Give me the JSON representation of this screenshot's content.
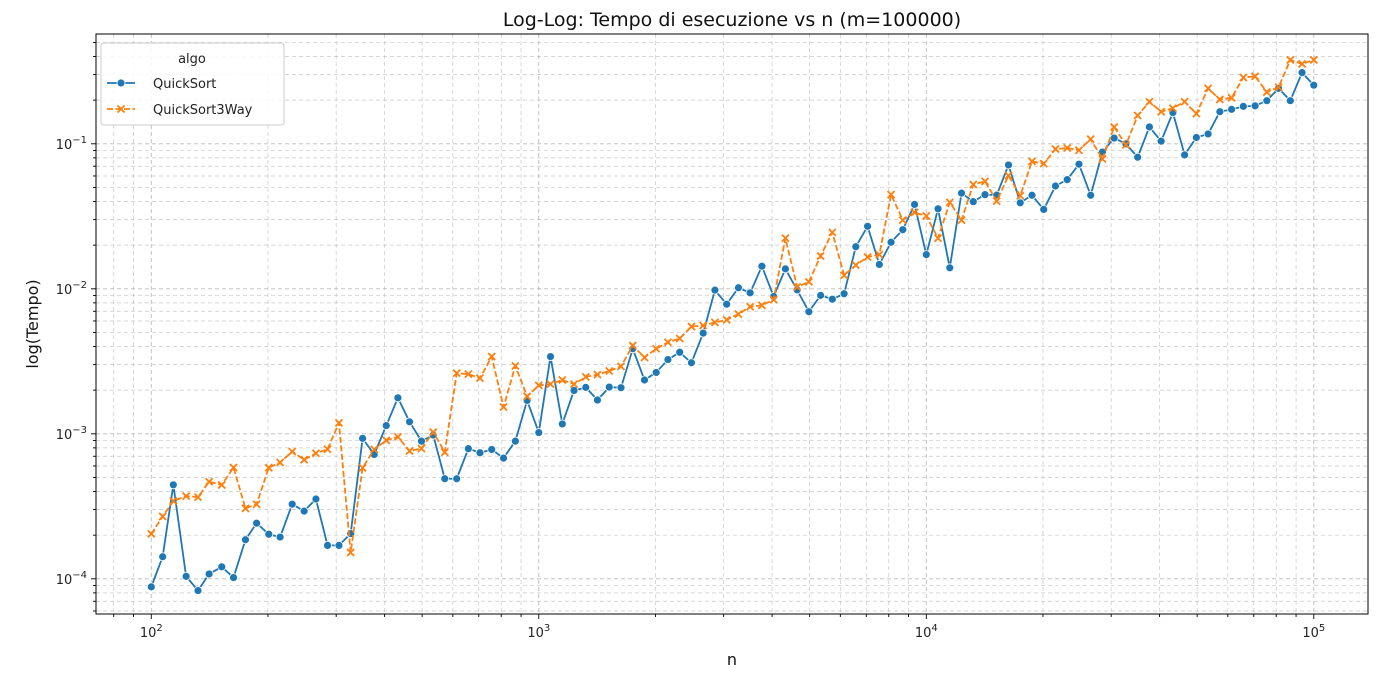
{
  "chart_data": {
    "type": "line",
    "title": "Log-Log: Tempo di esecuzione vs n (m=100000)",
    "xlabel": "n",
    "ylabel": "log(Tempo)",
    "xscale": "log",
    "yscale": "log",
    "xlim": [
      72,
      138000
    ],
    "ylim": [
      5.72e-05,
      0.5717
    ],
    "grid": true,
    "legend": {
      "title": "algo",
      "placement": "top-left"
    },
    "x": [
      100,
      107,
      114,
      123,
      132,
      141,
      152,
      163,
      175,
      187,
      201,
      215,
      231,
      248,
      266,
      285,
      305,
      327,
      351,
      376,
      404,
      433,
      464,
      498,
      534,
      572,
      614,
      658,
      705,
      756,
      811,
      870,
      933,
      1000,
      1072,
      1150,
      1233,
      1322,
      1417,
      1520,
      1630,
      1748,
      1874,
      2009,
      2154,
      2310,
      2477,
      2656,
      2848,
      3054,
      3275,
      3511,
      3765,
      4037,
      4329,
      4642,
      4977,
      5337,
      5722,
      6136,
      6579,
      7055,
      7565,
      8111,
      8697,
      9326,
      10000,
      10723,
      11498,
      12328,
      13219,
      14175,
      15199,
      16298,
      17475,
      18738,
      20092,
      21544,
      23101,
      24771,
      26561,
      28480,
      30539,
      32745,
      35112,
      37649,
      40370,
      43288,
      46416,
      49770,
      53367,
      57224,
      61359,
      65793,
      70548,
      75646,
      81113,
      86975,
      93260,
      100000
    ],
    "series": [
      {
        "name": "QuickSort",
        "color": "#1f77b4",
        "marker": "circle",
        "values": [
          8.8e-05,
          0.000142,
          0.000445,
          0.000104,
          8.3e-05,
          0.000108,
          0.000121,
          0.000102,
          0.000186,
          0.000242,
          0.000203,
          0.000194,
          0.000327,
          0.000293,
          0.000355,
          0.00017,
          0.00017,
          0.000205,
          0.00093,
          0.00072,
          0.00114,
          0.00177,
          0.00121,
          0.00089,
          0.00098,
          0.00049,
          0.00049,
          0.00079,
          0.00074,
          0.00078,
          0.00068,
          0.00089,
          0.0017,
          0.00102,
          0.00341,
          0.00117,
          0.00199,
          0.00209,
          0.00171,
          0.0021,
          0.00208,
          0.00386,
          0.00235,
          0.00265,
          0.00325,
          0.00365,
          0.00309,
          0.00495,
          0.00979,
          0.00783,
          0.01017,
          0.00938,
          0.01432,
          0.00886,
          0.01372,
          0.00983,
          0.00695,
          0.00901,
          0.00848,
          0.00925,
          0.01951,
          0.02698,
          0.01472,
          0.02094,
          0.02555,
          0.03818,
          0.01721,
          0.03562,
          0.01396,
          0.04568,
          0.03991,
          0.04459,
          0.04427,
          0.07147,
          0.03919,
          0.04418,
          0.03528,
          0.05117,
          0.0566,
          0.07233,
          0.04418,
          0.08766,
          0.10956,
          0.09989,
          0.08075,
          0.13062,
          0.10428,
          0.16408,
          0.08383,
          0.1105,
          0.11696,
          0.16645,
          0.17284,
          0.18117,
          0.18267,
          0.19833,
          0.24119,
          0.19833,
          0.30965,
          0.25356
        ]
      },
      {
        "name": "QuickSort3Way",
        "color": "#ff7f0e",
        "marker": "x",
        "values": [
          0.000204,
          0.000269,
          0.000344,
          0.000372,
          0.000366,
          0.000467,
          0.000444,
          0.000586,
          0.000306,
          0.000327,
          0.000584,
          0.000634,
          0.000754,
          0.000663,
          0.000734,
          0.000783,
          0.001189,
          0.000152,
          0.000582,
          0.000781,
          0.000901,
          0.000952,
          0.000762,
          0.000792,
          0.001026,
          0.000747,
          0.00262,
          0.00258,
          0.00242,
          0.00341,
          0.00153,
          0.00294,
          0.00181,
          0.00216,
          0.0022,
          0.00235,
          0.0022,
          0.00247,
          0.00256,
          0.00271,
          0.00292,
          0.00406,
          0.00336,
          0.00386,
          0.00428,
          0.00454,
          0.00549,
          0.00558,
          0.00587,
          0.00611,
          0.00669,
          0.00752,
          0.00769,
          0.00842,
          0.02235,
          0.01029,
          0.01117,
          0.01684,
          0.02451,
          0.01241,
          0.01456,
          0.01658,
          0.01722,
          0.04467,
          0.02978,
          0.03362,
          0.03183,
          0.02233,
          0.03948,
          0.02978,
          0.05238,
          0.05508,
          0.04026,
          0.06033,
          0.04382,
          0.07566,
          0.07293,
          0.09197,
          0.09355,
          0.09033,
          0.10771,
          0.07851,
          0.13062,
          0.09828,
          0.15668,
          0.19498,
          0.16645,
          0.17588,
          0.19498,
          0.16133,
          0.24119,
          0.20227,
          0.20754,
          0.28648,
          0.29208,
          0.22742,
          0.24551,
          0.37868,
          0.3554,
          0.37868
        ]
      }
    ],
    "x_ticks": [
      {
        "value": 100,
        "base": "10",
        "exp": "2"
      },
      {
        "value": 1000,
        "base": "10",
        "exp": "3"
      },
      {
        "value": 10000,
        "base": "10",
        "exp": "4"
      },
      {
        "value": 100000,
        "base": "10",
        "exp": "5"
      }
    ],
    "y_ticks": [
      {
        "value": 0.0001,
        "base": "10",
        "exp": "−4"
      },
      {
        "value": 0.001,
        "base": "10",
        "exp": "−3"
      },
      {
        "value": 0.01,
        "base": "10",
        "exp": "−2"
      },
      {
        "value": 0.1,
        "base": "10",
        "exp": "−1"
      }
    ]
  }
}
